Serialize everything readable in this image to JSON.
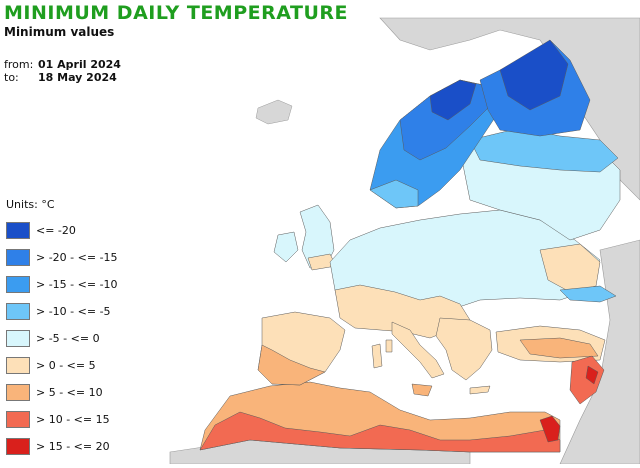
{
  "header": {
    "title": "MINIMUM DAILY TEMPERATURE",
    "subtitle": "Minimum values"
  },
  "period": {
    "from_label": "from:",
    "from_value": "01 April 2024",
    "to_label": "to:",
    "to_value": "18 May 2024"
  },
  "legend": {
    "units": "Units: °C",
    "items": [
      {
        "label": "<= -20",
        "color": "#1a4fc8"
      },
      {
        "label": "> -20 - <= -15",
        "color": "#2f80e8"
      },
      {
        "label": "> -15 - <= -10",
        "color": "#3b9cf0"
      },
      {
        "label": "> -10 - <= -5",
        "color": "#6ec6f8"
      },
      {
        "label": "> -5 - <= 0",
        "color": "#d8f6fc"
      },
      {
        "label": "> 0 - <= 5",
        "color": "#fde0b8"
      },
      {
        "label": "> 5 - <= 10",
        "color": "#f9b47a"
      },
      {
        "label": "> 10 - <= 15",
        "color": "#f26a52"
      },
      {
        "label": "> 15 - <= 20",
        "color": "#d9201c"
      }
    ]
  },
  "map_colors": {
    "sea": "#ffffff",
    "land_outside": "#d7d7d7",
    "border": "#5a5a5a"
  }
}
